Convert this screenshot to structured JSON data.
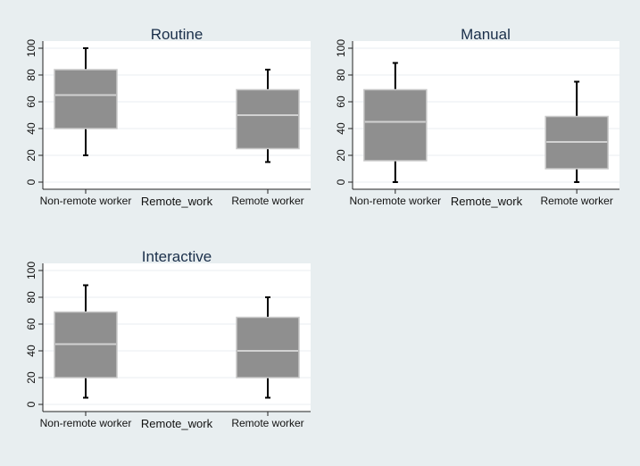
{
  "chart_data": [
    {
      "type": "box",
      "title": "Routine",
      "xlabel": "Remote_work",
      "ylabel": "",
      "ylim": [
        0,
        100
      ],
      "yticks": [
        0,
        20,
        40,
        60,
        80,
        100
      ],
      "grid": true,
      "categories": [
        "Non-remote worker",
        "Remote worker"
      ],
      "boxes": [
        {
          "min": 20,
          "q1": 40,
          "median": 65,
          "q3": 84,
          "max": 100
        },
        {
          "min": 15,
          "q1": 25,
          "median": 50,
          "q3": 69,
          "max": 84
        }
      ]
    },
    {
      "type": "box",
      "title": "Manual",
      "xlabel": "Remote_work",
      "ylabel": "",
      "ylim": [
        0,
        100
      ],
      "yticks": [
        0,
        20,
        40,
        60,
        80,
        100
      ],
      "grid": true,
      "categories": [
        "Non-remote worker",
        "Remote worker"
      ],
      "boxes": [
        {
          "min": 0,
          "q1": 16,
          "median": 45,
          "q3": 69,
          "max": 89
        },
        {
          "min": 0,
          "q1": 10,
          "median": 30,
          "q3": 49,
          "max": 75
        }
      ]
    },
    {
      "type": "box",
      "title": "Interactive",
      "xlabel": "Remote_work",
      "ylabel": "",
      "ylim": [
        0,
        100
      ],
      "yticks": [
        0,
        20,
        40,
        60,
        80,
        100
      ],
      "grid": true,
      "categories": [
        "Non-remote worker",
        "Remote worker"
      ],
      "boxes": [
        {
          "min": 5,
          "q1": 20,
          "median": 45,
          "q3": 69,
          "max": 89
        },
        {
          "min": 5,
          "q1": 20,
          "median": 40,
          "q3": 65,
          "max": 80
        }
      ]
    }
  ]
}
